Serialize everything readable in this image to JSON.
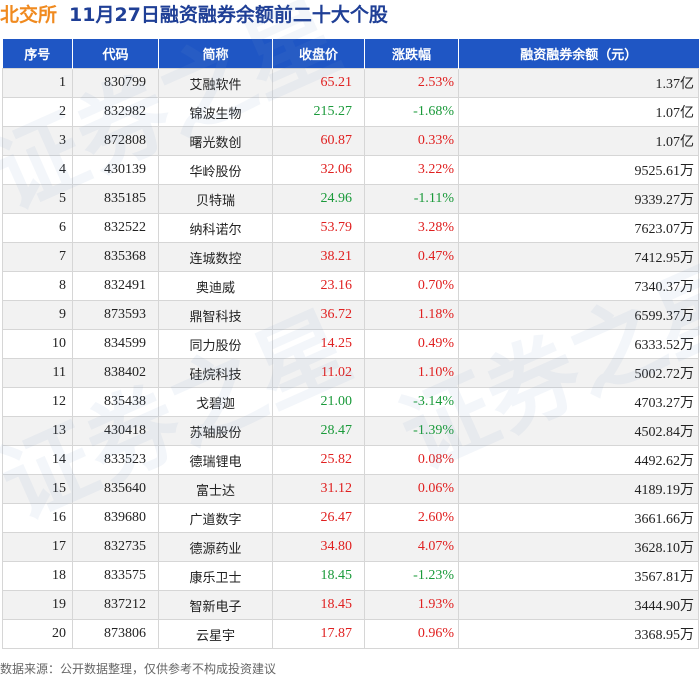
{
  "title": {
    "market": "北交所",
    "heading": "11月27日融资融券余额前二十大个股"
  },
  "columns": [
    "序号",
    "代码",
    "简称",
    "收盘价",
    "涨跌幅",
    "融资融券余额（元）"
  ],
  "rows": [
    {
      "idx": "1",
      "code": "830799",
      "name": "艾融软件",
      "price": "65.21",
      "change": "2.53%",
      "balance": "1.37亿"
    },
    {
      "idx": "2",
      "code": "832982",
      "name": "锦波生物",
      "price": "215.27",
      "change": "-1.68%",
      "balance": "1.07亿"
    },
    {
      "idx": "3",
      "code": "872808",
      "name": "曙光数创",
      "price": "60.87",
      "change": "0.33%",
      "balance": "1.07亿"
    },
    {
      "idx": "4",
      "code": "430139",
      "name": "华岭股份",
      "price": "32.06",
      "change": "3.22%",
      "balance": "9525.61万"
    },
    {
      "idx": "5",
      "code": "835185",
      "name": "贝特瑞",
      "price": "24.96",
      "change": "-1.11%",
      "balance": "9339.27万"
    },
    {
      "idx": "6",
      "code": "832522",
      "name": "纳科诺尔",
      "price": "53.79",
      "change": "3.28%",
      "balance": "7623.07万"
    },
    {
      "idx": "7",
      "code": "835368",
      "name": "连城数控",
      "price": "38.21",
      "change": "0.47%",
      "balance": "7412.95万"
    },
    {
      "idx": "8",
      "code": "832491",
      "name": "奥迪威",
      "price": "23.16",
      "change": "0.70%",
      "balance": "7340.37万"
    },
    {
      "idx": "9",
      "code": "873593",
      "name": "鼎智科技",
      "price": "36.72",
      "change": "1.18%",
      "balance": "6599.37万"
    },
    {
      "idx": "10",
      "code": "834599",
      "name": "同力股份",
      "price": "14.25",
      "change": "0.49%",
      "balance": "6333.52万"
    },
    {
      "idx": "11",
      "code": "838402",
      "name": "硅烷科技",
      "price": "11.02",
      "change": "1.10%",
      "balance": "5002.72万"
    },
    {
      "idx": "12",
      "code": "835438",
      "name": "戈碧迦",
      "price": "21.00",
      "change": "-3.14%",
      "balance": "4703.27万"
    },
    {
      "idx": "13",
      "code": "430418",
      "name": "苏轴股份",
      "price": "28.47",
      "change": "-1.39%",
      "balance": "4502.84万"
    },
    {
      "idx": "14",
      "code": "833523",
      "name": "德瑞锂电",
      "price": "25.82",
      "change": "0.08%",
      "balance": "4492.62万"
    },
    {
      "idx": "15",
      "code": "835640",
      "name": "富士达",
      "price": "31.12",
      "change": "0.06%",
      "balance": "4189.19万"
    },
    {
      "idx": "16",
      "code": "839680",
      "name": "广道数字",
      "price": "26.47",
      "change": "2.60%",
      "balance": "3661.66万"
    },
    {
      "idx": "17",
      "code": "832735",
      "name": "德源药业",
      "price": "34.80",
      "change": "4.07%",
      "balance": "3628.10万"
    },
    {
      "idx": "18",
      "code": "833575",
      "name": "康乐卫士",
      "price": "18.45",
      "change": "-1.23%",
      "balance": "3567.81万"
    },
    {
      "idx": "19",
      "code": "837212",
      "name": "智新电子",
      "price": "18.45",
      "change": "1.93%",
      "balance": "3444.90万"
    },
    {
      "idx": "20",
      "code": "873806",
      "name": "云星宇",
      "price": "17.87",
      "change": "0.96%",
      "balance": "3368.95万"
    }
  ],
  "footer": "数据来源：公开数据整理，仅供参考不构成投资建议",
  "watermark": "证券之星",
  "colors": {
    "header_bg": "#1f56c4",
    "market_label": "#f08a1f",
    "heading": "#1f3f96",
    "up": "#e02020",
    "down": "#1a9a3a"
  }
}
